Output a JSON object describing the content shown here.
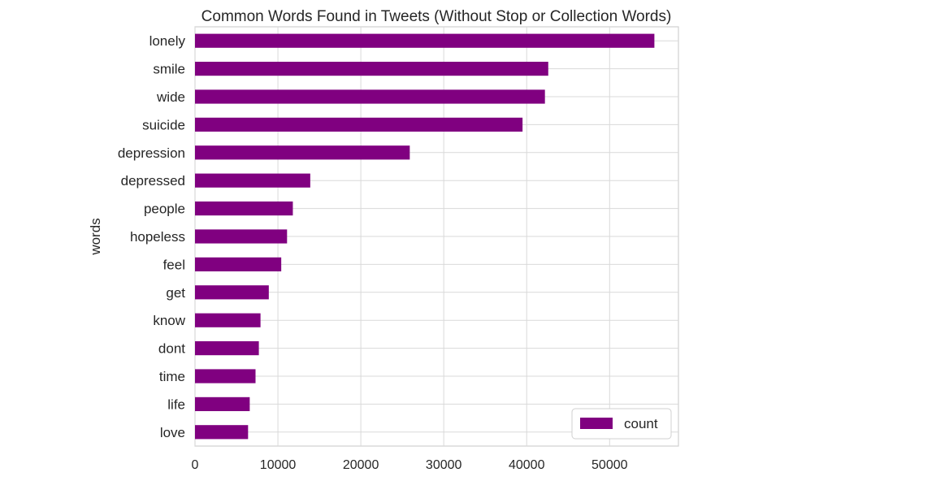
{
  "chart_data": {
    "type": "bar",
    "orientation": "horizontal",
    "title": "Common Words Found in Tweets (Without Stop or Collection Words)",
    "xlabel": "",
    "ylabel": "words",
    "xlim": [
      0,
      58300
    ],
    "xticks": [
      0,
      10000,
      20000,
      30000,
      40000,
      50000
    ],
    "xtick_labels": [
      "0",
      "10000",
      "20000",
      "30000",
      "40000",
      "50000"
    ],
    "grid": true,
    "legend": {
      "placement": "bottom-right",
      "entries": [
        "count"
      ]
    },
    "categories": [
      "lonely",
      "smile",
      "wide",
      "suicide",
      "depression",
      "depressed",
      "people",
      "hopeless",
      "feel",
      "get",
      "know",
      "dont",
      "time",
      "life",
      "love"
    ],
    "series": [
      {
        "name": "count",
        "color": "#800080",
        "values": [
          55400,
          42600,
          42200,
          39500,
          25900,
          13900,
          11800,
          11100,
          10400,
          8900,
          7900,
          7700,
          7300,
          6600,
          6400
        ]
      }
    ]
  }
}
